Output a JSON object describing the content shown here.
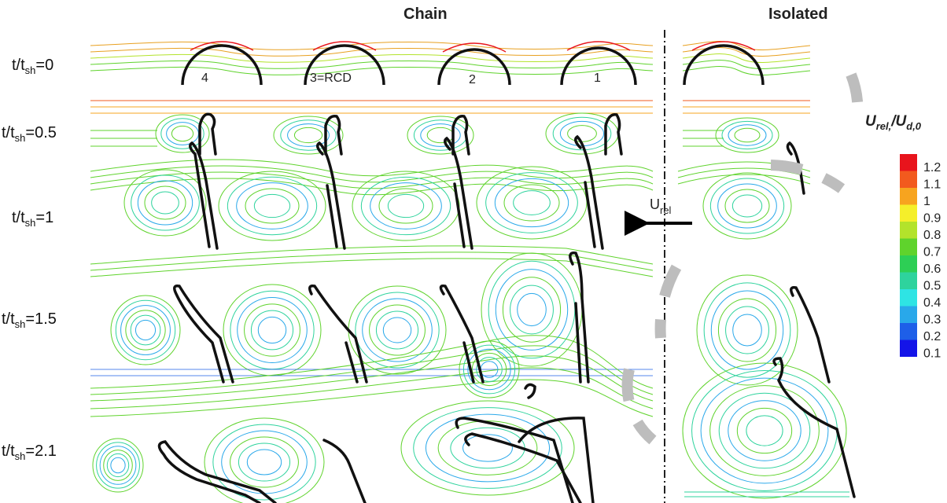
{
  "headers": {
    "chain": "Chain",
    "isolated": "Isolated"
  },
  "rows": [
    {
      "prefix": "t/t",
      "sub": "sh",
      "suffix": "=0"
    },
    {
      "prefix": "t/t",
      "sub": "sh",
      "suffix": "=0.5"
    },
    {
      "prefix": "t/t",
      "sub": "sh",
      "suffix": "=1"
    },
    {
      "prefix": "t/t",
      "sub": "sh",
      "suffix": "=1.5"
    },
    {
      "prefix": "t/t",
      "sub": "sh",
      "suffix": "=2.1"
    }
  ],
  "droplet_labels": [
    "4",
    "3=RCD",
    "2",
    "1"
  ],
  "velocity_label": {
    "main": "U",
    "sub": "rel"
  },
  "colorbar": {
    "title_main": "U",
    "title_sub1": "rel,",
    "title_slash": "/U",
    "title_sub2": "d,0",
    "ticks": [
      "1.2",
      "1.1",
      "1",
      "0.9",
      "0.8",
      "0.7",
      "0.6",
      "0.5",
      "0.4",
      "0.3",
      "0.2",
      "0.1"
    ],
    "colors": [
      "#e8141c",
      "#f25a1e",
      "#f7a41f",
      "#f5ef2a",
      "#b3e32b",
      "#5fd32c",
      "#2dcf55",
      "#2ed39d",
      "#2ee4e4",
      "#29a8ea",
      "#1e5fe8",
      "#1414e8"
    ]
  }
}
